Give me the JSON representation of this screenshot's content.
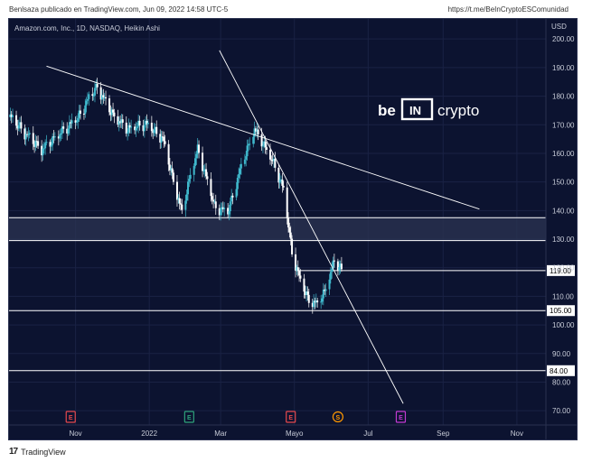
{
  "header": {
    "published": "Benlsaza publicado en TradingView.com, Jun 09, 2022 14:58 UTC-5",
    "link": "https://t.me/BeInCryptoESComunidad"
  },
  "footer": {
    "brand": "TradingView"
  },
  "watermark": {
    "left": "be",
    "mid": "IN",
    "right": "crypto"
  },
  "colors": {
    "background": "#0c1330",
    "bull": "#3fb8cc",
    "bear": "#ffffff",
    "line": "#ffffff",
    "zone": "#2b3452"
  },
  "chart_data": {
    "type": "candlestick",
    "title": "Amazon.com, Inc., 1D, NASDAQ, Heikin Ashi",
    "currency": "USD",
    "ylim": [
      65,
      207
    ],
    "y_ticks": [
      70,
      80,
      90,
      100,
      110,
      120,
      130,
      140,
      150,
      160,
      170,
      180,
      190,
      200
    ],
    "x_ticks": [
      {
        "label": "Nov",
        "date": "2021-11-01"
      },
      {
        "label": "2022",
        "date": "2022-01-01"
      },
      {
        "label": "Mar",
        "date": "2022-03-01"
      },
      {
        "label": "Mayo",
        "date": "2022-05-01"
      },
      {
        "label": "Jul",
        "date": "2022-07-01"
      },
      {
        "label": "Sep",
        "date": "2022-09-01"
      },
      {
        "label": "Nov",
        "date": "2022-11-01"
      }
    ],
    "x_range": [
      "2021-09-07",
      "2022-11-25"
    ],
    "price_closes": [
      {
        "date": "2021-09-07",
        "value": 173
      },
      {
        "date": "2021-09-20",
        "value": 167
      },
      {
        "date": "2021-10-04",
        "value": 161
      },
      {
        "date": "2021-10-20",
        "value": 167
      },
      {
        "date": "2021-11-03",
        "value": 172
      },
      {
        "date": "2021-11-12",
        "value": 179
      },
      {
        "date": "2021-11-19",
        "value": 183
      },
      {
        "date": "2021-12-02",
        "value": 173
      },
      {
        "date": "2021-12-14",
        "value": 168
      },
      {
        "date": "2021-12-29",
        "value": 170
      },
      {
        "date": "2022-01-12",
        "value": 165
      },
      {
        "date": "2022-01-21",
        "value": 150
      },
      {
        "date": "2022-01-28",
        "value": 139
      },
      {
        "date": "2022-02-04",
        "value": 152
      },
      {
        "date": "2022-02-10",
        "value": 161
      },
      {
        "date": "2022-02-18",
        "value": 150
      },
      {
        "date": "2022-02-24",
        "value": 141
      },
      {
        "date": "2022-03-07",
        "value": 139
      },
      {
        "date": "2022-03-18",
        "value": 155
      },
      {
        "date": "2022-03-29",
        "value": 168
      },
      {
        "date": "2022-04-05",
        "value": 163
      },
      {
        "date": "2022-04-14",
        "value": 156
      },
      {
        "date": "2022-04-22",
        "value": 147
      },
      {
        "date": "2022-04-29",
        "value": 125
      },
      {
        "date": "2022-05-06",
        "value": 115
      },
      {
        "date": "2022-05-13",
        "value": 108
      },
      {
        "date": "2022-05-20",
        "value": 107
      },
      {
        "date": "2022-05-26",
        "value": 111
      },
      {
        "date": "2022-06-03",
        "value": 122
      },
      {
        "date": "2022-06-09",
        "value": 119
      }
    ],
    "levels": [
      {
        "label": "119.00",
        "value": 119
      },
      {
        "label": "105.00",
        "value": 105
      },
      {
        "label": "84.00",
        "value": 84
      }
    ],
    "zone": {
      "low": 129.5,
      "high": 137.5
    },
    "trendlines": [
      {
        "from": {
          "date": "2021-10-08",
          "value": 190.5
        },
        "to": {
          "date": "2022-10-01",
          "value": 140.5
        }
      },
      {
        "from": {
          "date": "2022-02-28",
          "value": 196
        },
        "to": {
          "date": "2022-07-30",
          "value": 72.5
        }
      }
    ],
    "events": [
      {
        "label": "E",
        "date": "2021-10-28",
        "color": "#e5484d"
      },
      {
        "label": "E",
        "date": "2022-02-03",
        "color": "#2fa37a"
      },
      {
        "label": "E",
        "date": "2022-04-28",
        "color": "#e5484d"
      },
      {
        "label": "S",
        "date": "2022-06-06",
        "color": "#ff9800"
      },
      {
        "label": "E",
        "date": "2022-07-28",
        "color": "#c23ad1"
      }
    ]
  }
}
